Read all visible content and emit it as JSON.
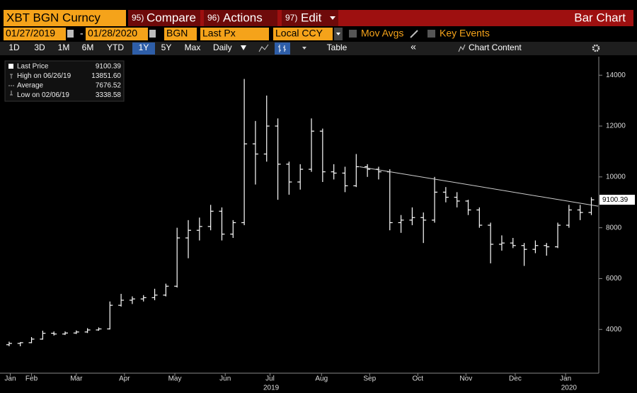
{
  "header": {
    "security": "XBT BGN Curncy",
    "menu": [
      {
        "number": "95)",
        "label": "Compare"
      },
      {
        "number": "96)",
        "label": "Actions"
      },
      {
        "number": "97)",
        "label": "Edit"
      }
    ],
    "view": "Bar Chart"
  },
  "controls": {
    "start_date": "01/27/2019",
    "separator": "-",
    "end_date": "01/28/2020",
    "source": "BGN",
    "field": "Last Px",
    "currency": "Local CCY",
    "toggles": [
      "Mov Avgs",
      "Key Events"
    ]
  },
  "toolbar": {
    "periods": [
      "1D",
      "3D",
      "1M",
      "6M",
      "YTD",
      "1Y",
      "5Y",
      "Max"
    ],
    "selected_period": 5,
    "interval": "Daily",
    "table": "Table",
    "collapse": "«",
    "chart_content": "Chart Content"
  },
  "chart_data": {
    "type": "ohlc",
    "color": "#ffffff",
    "categories": [
      null,
      null,
      null,
      null,
      null,
      null,
      null,
      null,
      null,
      null,
      null,
      null,
      null,
      null,
      null,
      null,
      null,
      null,
      null,
      null,
      null,
      null,
      null,
      null,
      null,
      null,
      null,
      null,
      null,
      null,
      null,
      null,
      null,
      null,
      null,
      null,
      null,
      null,
      null,
      null,
      null,
      null,
      null,
      null,
      null,
      null,
      null,
      null,
      null,
      null,
      null,
      null,
      null
    ],
    "open": [
      3400,
      3450,
      3480,
      3620,
      3850,
      3820,
      3860,
      3900,
      3980,
      4020,
      4950,
      5150,
      5200,
      5250,
      5350,
      5700,
      7600,
      7900,
      8050,
      8650,
      7750,
      8200,
      11300,
      10900,
      12000,
      10500,
      9800,
      10300,
      11800,
      10200,
      10150,
      9650,
      10400,
      10300,
      10200,
      8200,
      8300,
      8400,
      8300,
      9400,
      9200,
      9050,
      8700,
      8100,
      7350,
      7400,
      7300,
      7150,
      7300,
      7250,
      8100,
      8700,
      8600
    ],
    "high": [
      3520,
      3500,
      3700,
      3950,
      3920,
      3920,
      3960,
      4050,
      4080,
      5100,
      5400,
      5300,
      5350,
      5600,
      5800,
      8000,
      8300,
      8400,
      8900,
      8800,
      8300,
      13851.6,
      12200,
      13200,
      12300,
      10600,
      10500,
      12300,
      11900,
      10500,
      10400,
      10900,
      10500,
      10400,
      10300,
      8500,
      8800,
      8600,
      10000,
      9600,
      9400,
      9100,
      8800,
      8200,
      7700,
      7600,
      7400,
      7500,
      7400,
      8200,
      8900,
      8900,
      9200
    ],
    "low": [
      3340,
      3338.58,
      3460,
      3600,
      3760,
      3780,
      3820,
      3860,
      3950,
      4000,
      4900,
      5000,
      5100,
      5150,
      5300,
      5650,
      6800,
      7500,
      7900,
      7500,
      7600,
      8100,
      9700,
      10600,
      9100,
      9300,
      9500,
      10200,
      9800,
      9900,
      9400,
      9600,
      10000,
      9900,
      7900,
      7800,
      8100,
      7400,
      8200,
      9000,
      8800,
      8500,
      8000,
      6600,
      7100,
      7200,
      6500,
      7000,
      6900,
      7200,
      8000,
      8300,
      8500
    ],
    "close": [
      3450,
      3480,
      3620,
      3850,
      3820,
      3860,
      3900,
      3980,
      4020,
      4950,
      5150,
      5200,
      5250,
      5350,
      5700,
      7600,
      7900,
      8050,
      8650,
      7750,
      8200,
      11300,
      10900,
      12000,
      10500,
      9800,
      10300,
      11800,
      10200,
      10150,
      9650,
      10400,
      10300,
      10200,
      8200,
      8300,
      8400,
      8300,
      9400,
      9200,
      9050,
      8700,
      8100,
      7350,
      7400,
      7300,
      7150,
      7300,
      7250,
      8100,
      8700,
      8600,
      9100.39
    ],
    "xlim": [
      0,
      53.1
    ],
    "xticks": [
      {
        "value": 0.6,
        "label": "Jan"
      },
      {
        "value": 2.5,
        "label": "Feb"
      },
      {
        "value": 6.5,
        "label": "Mar"
      },
      {
        "value": 10.8,
        "label": "Apr"
      },
      {
        "value": 15.3,
        "label": "May"
      },
      {
        "value": 19.8,
        "label": "Jun"
      },
      {
        "value": 23.8,
        "label": "Jul"
      },
      {
        "value": 28.4,
        "label": "Aug"
      },
      {
        "value": 32.7,
        "label": "Sep"
      },
      {
        "value": 37.0,
        "label": "Oct"
      },
      {
        "value": 41.3,
        "label": "Nov"
      },
      {
        "value": 45.7,
        "label": "Dec"
      },
      {
        "value": 50.2,
        "label": "Jan"
      }
    ],
    "year_labels": [
      {
        "value": 23.9,
        "label": "2019"
      },
      {
        "value": 50.5,
        "label": "2020"
      }
    ],
    "ylim": [
      2280,
      14730
    ],
    "yticks": [
      4000,
      6000,
      8000,
      10000,
      12000,
      14000
    ],
    "last_price_label": {
      "value": 9100.39,
      "label": "9100.39"
    },
    "trend_line": {
      "x": [
        31.8,
        53.1
      ],
      "values": [
        10400,
        8850
      ],
      "color": "#cfcfcf"
    },
    "legend": [
      {
        "label": "Last Price",
        "value": "9100.39"
      },
      {
        "label": "High on 06/26/19",
        "value": "13851.60"
      },
      {
        "label": "Average",
        "value": "7676.52"
      },
      {
        "label": "Low on 02/06/19",
        "value": "3338.58"
      }
    ]
  }
}
